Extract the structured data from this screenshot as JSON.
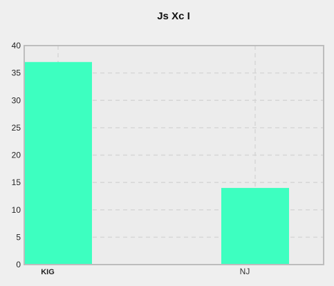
{
  "chart_data": {
    "type": "bar",
    "title": "Js Xc I",
    "xlabel": "",
    "ylabel": "",
    "categories": [
      "KIG",
      "NJ"
    ],
    "values": [
      37,
      14
    ],
    "ylim": [
      0,
      40
    ],
    "yticks": [
      0,
      5,
      10,
      15,
      20,
      25,
      30,
      35,
      40
    ],
    "bar_color": "#3dffc0",
    "grid": true,
    "legend": "none"
  }
}
